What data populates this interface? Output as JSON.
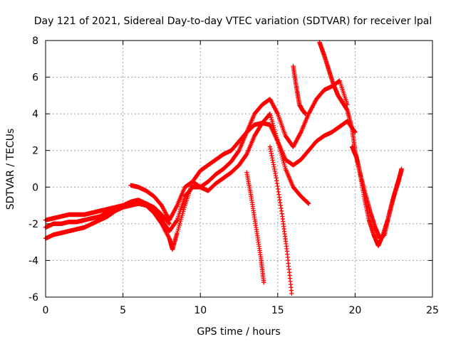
{
  "chart_data": {
    "type": "scatter",
    "title": "Day 121 of 2021, Sidereal Day-to-day VTEC variation (SDTVAR) for receiver lpal",
    "xlabel": "GPS time / hours",
    "ylabel": "SDTVAR / TECUs",
    "xlim": [
      0,
      25
    ],
    "ylim": [
      -6,
      8
    ],
    "xticks": [
      0,
      5,
      10,
      15,
      20,
      25
    ],
    "yticks": [
      -6,
      -4,
      -2,
      0,
      2,
      4,
      6,
      8
    ],
    "grid": true,
    "marker": "plus",
    "color": "#ff0000",
    "series": [
      {
        "x": [
          0.0,
          0.5,
          1.0,
          1.5,
          2.0,
          2.5,
          3.0,
          3.5,
          4.0,
          4.5,
          5.0,
          5.5,
          6.0,
          6.5,
          7.0,
          7.5,
          8.0,
          8.2,
          8.5,
          9.0,
          9.5,
          10.0,
          10.5,
          11.0,
          11.5,
          12.0,
          12.5,
          13.0,
          13.5,
          14.0,
          14.5,
          15.0,
          15.5,
          16.0,
          16.5,
          17.0,
          17.5,
          18.0,
          18.5,
          19.0,
          19.5,
          20.0
        ],
        "y": [
          -2.8,
          -2.6,
          -2.5,
          -2.4,
          -2.3,
          -2.2,
          -2.0,
          -1.8,
          -1.6,
          -1.3,
          -1.1,
          -1.0,
          -0.9,
          -1.0,
          -1.4,
          -2.0,
          -2.8,
          -3.4,
          -2.5,
          -1.0,
          0.3,
          0.9,
          1.2,
          1.5,
          1.8,
          2.0,
          2.5,
          3.0,
          3.4,
          3.5,
          3.4,
          2.5,
          1.5,
          1.2,
          1.5,
          2.0,
          2.5,
          2.8,
          3.0,
          3.3,
          3.6,
          3.0
        ]
      },
      {
        "x": [
          0.0,
          0.5,
          1.0,
          1.5,
          2.0,
          2.5,
          3.0,
          3.5,
          4.0,
          4.5,
          5.0,
          5.5,
          6.0,
          6.5,
          7.0,
          7.5,
          8.0,
          8.5,
          9.0,
          9.5,
          10.0,
          10.5,
          11.0,
          11.5,
          12.0,
          12.5,
          13.0,
          13.5,
          14.0,
          14.5,
          15.0,
          15.5,
          16.0,
          16.5,
          17.0,
          17.5,
          18.0,
          18.5,
          19.0,
          19.5
        ],
        "y": [
          -2.2,
          -2.0,
          -2.0,
          -1.9,
          -1.9,
          -1.8,
          -1.7,
          -1.6,
          -1.4,
          -1.2,
          -1.0,
          -0.8,
          -0.7,
          -0.9,
          -1.2,
          -1.8,
          -2.4,
          -1.8,
          -0.5,
          0.0,
          0.0,
          0.3,
          0.7,
          1.0,
          1.4,
          2.0,
          3.0,
          4.0,
          4.5,
          4.8,
          4.0,
          2.8,
          2.2,
          3.0,
          4.0,
          4.8,
          5.3,
          5.5,
          5.8,
          4.5
        ]
      },
      {
        "x": [
          0.0,
          0.5,
          1.0,
          1.5,
          2.0,
          2.5,
          3.0,
          3.5,
          4.0,
          4.5,
          5.0,
          5.5,
          6.0,
          6.5,
          7.0,
          7.5,
          8.0
        ],
        "y": [
          -1.8,
          -1.7,
          -1.6,
          -1.5,
          -1.5,
          -1.5,
          -1.4,
          -1.3,
          -1.2,
          -1.1,
          -1.0,
          -0.9,
          -0.8,
          -0.9,
          -1.1,
          -1.5,
          -2.0
        ]
      },
      {
        "x": [
          5.5,
          6.0,
          6.5,
          7.0,
          7.5,
          8.0,
          8.5,
          9.0,
          9.5,
          10.0,
          10.5,
          11.0,
          11.5,
          12.0,
          12.5,
          13.0,
          13.5,
          14.0,
          14.5,
          15.0,
          15.5,
          16.0,
          16.5,
          17.0
        ],
        "y": [
          0.1,
          0.0,
          -0.2,
          -0.5,
          -1.0,
          -1.8,
          -1.0,
          0.0,
          0.3,
          0.0,
          -0.2,
          0.2,
          0.5,
          0.8,
          1.2,
          1.8,
          2.8,
          3.5,
          4.0,
          2.5,
          1.0,
          0.0,
          -0.5,
          -0.9
        ]
      },
      {
        "x": [
          13.0,
          13.3,
          13.6,
          13.9,
          14.1
        ],
        "y": [
          0.8,
          -0.6,
          -2.2,
          -3.8,
          -5.2
        ]
      },
      {
        "x": [
          14.5,
          14.9,
          15.3,
          15.6,
          15.9
        ],
        "y": [
          2.2,
          0.5,
          -1.6,
          -3.5,
          -5.8
        ]
      },
      {
        "x": [
          16.0,
          16.2,
          16.4,
          16.6,
          16.8
        ],
        "y": [
          6.6,
          5.5,
          4.5,
          4.2,
          4.0
        ]
      },
      {
        "x": [
          17.7,
          18.0,
          18.3,
          18.6,
          18.9,
          19.2,
          19.5,
          19.8,
          20.0,
          20.3,
          20.6,
          20.9,
          21.2,
          21.5,
          21.8,
          22.1,
          22.4,
          22.7,
          23.0
        ],
        "y": [
          7.9,
          7.2,
          6.4,
          5.6,
          5.0,
          4.6,
          4.2,
          3.2,
          2.0,
          0.8,
          -0.6,
          -1.8,
          -2.6,
          -3.2,
          -2.6,
          -1.8,
          -0.8,
          0.1,
          0.9
        ]
      },
      {
        "x": [
          19.8,
          20.1,
          20.4,
          20.7,
          21.0,
          21.3,
          21.6,
          21.9,
          22.2,
          22.5,
          22.8,
          23.0
        ],
        "y": [
          2.2,
          1.6,
          0.5,
          -0.5,
          -1.4,
          -2.2,
          -2.8,
          -2.6,
          -1.5,
          -0.5,
          0.3,
          1.0
        ]
      }
    ]
  }
}
